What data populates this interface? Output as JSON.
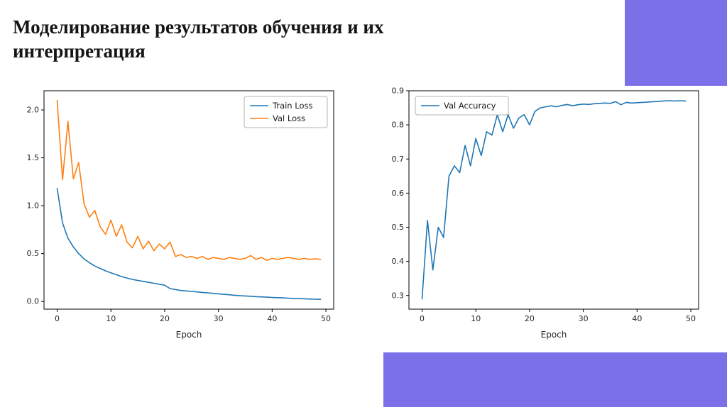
{
  "slide": {
    "title": "Моделирование результатов обучения и их\nинтерпретация"
  },
  "colors": {
    "accent_purple": "#7b70e8",
    "train_loss": "#1f77b4",
    "val_loss": "#ff7f0e",
    "val_accuracy": "#1f77b4",
    "axis": "#000000",
    "tick_label": "#262626",
    "legend_border": "#b3b3b3"
  },
  "chart_data": [
    {
      "type": "line",
      "title": "",
      "xlabel": "Epoch",
      "ylabel": "",
      "grid": false,
      "legend_position": "upper right",
      "xlim": [
        -2.45,
        51.45
      ],
      "ylim": [
        -0.08,
        2.2
      ],
      "xticks": [
        0,
        10,
        20,
        30,
        40,
        50
      ],
      "yticks": [
        0.0,
        0.5,
        1.0,
        1.5,
        2.0
      ],
      "ytick_decimals": 1,
      "x": [
        0,
        1,
        2,
        3,
        4,
        5,
        6,
        7,
        8,
        9,
        10,
        11,
        12,
        13,
        14,
        15,
        16,
        17,
        18,
        19,
        20,
        21,
        22,
        23,
        24,
        25,
        26,
        27,
        28,
        29,
        30,
        31,
        32,
        33,
        34,
        35,
        36,
        37,
        38,
        39,
        40,
        41,
        42,
        43,
        44,
        45,
        46,
        47,
        48,
        49
      ],
      "series": [
        {
          "name": "Train Loss",
          "color": "#1f77b4",
          "values": [
            1.18,
            0.82,
            0.66,
            0.57,
            0.5,
            0.445,
            0.405,
            0.37,
            0.345,
            0.32,
            0.3,
            0.28,
            0.26,
            0.245,
            0.23,
            0.22,
            0.21,
            0.2,
            0.19,
            0.18,
            0.17,
            0.135,
            0.125,
            0.115,
            0.11,
            0.105,
            0.1,
            0.095,
            0.09,
            0.085,
            0.08,
            0.075,
            0.07,
            0.065,
            0.06,
            0.058,
            0.055,
            0.05,
            0.048,
            0.045,
            0.042,
            0.04,
            0.038,
            0.035,
            0.032,
            0.03,
            0.028,
            0.026,
            0.024,
            0.022
          ]
        },
        {
          "name": "Val Loss",
          "color": "#ff7f0e",
          "values": [
            2.1,
            1.27,
            1.88,
            1.28,
            1.45,
            1.02,
            0.88,
            0.95,
            0.78,
            0.7,
            0.85,
            0.68,
            0.8,
            0.62,
            0.56,
            0.68,
            0.55,
            0.63,
            0.53,
            0.6,
            0.55,
            0.62,
            0.47,
            0.49,
            0.46,
            0.47,
            0.45,
            0.47,
            0.44,
            0.46,
            0.45,
            0.44,
            0.46,
            0.45,
            0.44,
            0.45,
            0.48,
            0.44,
            0.46,
            0.43,
            0.45,
            0.44,
            0.45,
            0.46,
            0.45,
            0.44,
            0.45,
            0.44,
            0.445,
            0.44
          ]
        }
      ]
    },
    {
      "type": "line",
      "title": "",
      "xlabel": "Epoch",
      "ylabel": "",
      "grid": false,
      "legend_position": "upper left",
      "xlim": [
        -2.45,
        51.45
      ],
      "ylim": [
        0.26,
        0.9
      ],
      "xticks": [
        0,
        10,
        20,
        30,
        40,
        50
      ],
      "yticks": [
        0.3,
        0.4,
        0.5,
        0.6,
        0.7,
        0.8,
        0.9
      ],
      "ytick_decimals": 1,
      "x": [
        0,
        1,
        2,
        3,
        4,
        5,
        6,
        7,
        8,
        9,
        10,
        11,
        12,
        13,
        14,
        15,
        16,
        17,
        18,
        19,
        20,
        21,
        22,
        23,
        24,
        25,
        26,
        27,
        28,
        29,
        30,
        31,
        32,
        33,
        34,
        35,
        36,
        37,
        38,
        39,
        40,
        41,
        42,
        43,
        44,
        45,
        46,
        47,
        48,
        49
      ],
      "series": [
        {
          "name": "Val Accuracy",
          "color": "#1f77b4",
          "values": [
            0.29,
            0.52,
            0.375,
            0.5,
            0.47,
            0.65,
            0.68,
            0.66,
            0.74,
            0.68,
            0.76,
            0.71,
            0.78,
            0.77,
            0.83,
            0.78,
            0.83,
            0.79,
            0.82,
            0.83,
            0.8,
            0.84,
            0.85,
            0.853,
            0.856,
            0.853,
            0.857,
            0.86,
            0.856,
            0.859,
            0.861,
            0.86,
            0.862,
            0.863,
            0.864,
            0.863,
            0.868,
            0.859,
            0.866,
            0.864,
            0.865,
            0.866,
            0.867,
            0.868,
            0.869,
            0.87,
            0.871,
            0.87,
            0.871,
            0.87
          ]
        }
      ]
    }
  ]
}
